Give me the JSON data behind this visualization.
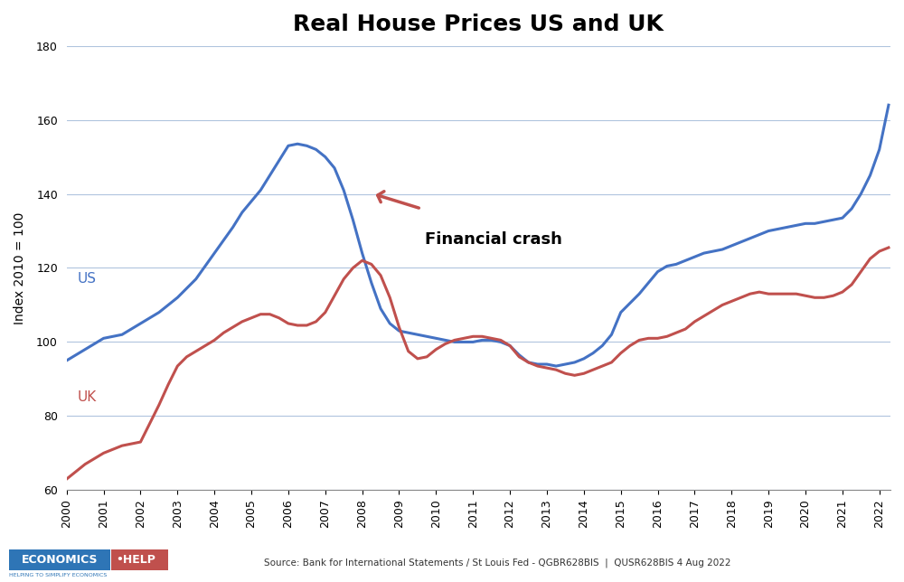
{
  "title": "Real House Prices US and UK",
  "ylabel": "Index 2010 = 100",
  "source_text": "Source: Bank for International Statements / St Louis Fed - QGBR628BIS  |  QUSR628BIS 4 Aug 2022",
  "ylim": [
    60,
    180
  ],
  "yticks": [
    60,
    80,
    100,
    120,
    140,
    160,
    180
  ],
  "background_color": "#ffffff",
  "us_color": "#4472C4",
  "uk_color": "#C0504D",
  "annotation_text": "Financial crash",
  "us_label": "US",
  "uk_label": "UK",
  "years": [
    2000.0,
    2000.25,
    2000.5,
    2000.75,
    2001.0,
    2001.25,
    2001.5,
    2001.75,
    2002.0,
    2002.25,
    2002.5,
    2002.75,
    2003.0,
    2003.25,
    2003.5,
    2003.75,
    2004.0,
    2004.25,
    2004.5,
    2004.75,
    2005.0,
    2005.25,
    2005.5,
    2005.75,
    2006.0,
    2006.25,
    2006.5,
    2006.75,
    2007.0,
    2007.25,
    2007.5,
    2007.75,
    2008.0,
    2008.25,
    2008.5,
    2008.75,
    2009.0,
    2009.25,
    2009.5,
    2009.75,
    2010.0,
    2010.25,
    2010.5,
    2010.75,
    2011.0,
    2011.25,
    2011.5,
    2011.75,
    2012.0,
    2012.25,
    2012.5,
    2012.75,
    2013.0,
    2013.25,
    2013.5,
    2013.75,
    2014.0,
    2014.25,
    2014.5,
    2014.75,
    2015.0,
    2015.25,
    2015.5,
    2015.75,
    2016.0,
    2016.25,
    2016.5,
    2016.75,
    2017.0,
    2017.25,
    2017.5,
    2017.75,
    2018.0,
    2018.25,
    2018.5,
    2018.75,
    2019.0,
    2019.25,
    2019.5,
    2019.75,
    2020.0,
    2020.25,
    2020.5,
    2020.75,
    2021.0,
    2021.25,
    2021.5,
    2021.75,
    2022.0,
    2022.25
  ],
  "us_values": [
    95.0,
    96.5,
    98.0,
    99.5,
    101.0,
    101.5,
    102.0,
    103.5,
    105.0,
    106.5,
    108.0,
    110.0,
    112.0,
    114.5,
    117.0,
    120.5,
    124.0,
    127.5,
    131.0,
    135.0,
    138.0,
    141.0,
    145.0,
    149.0,
    153.0,
    153.5,
    153.0,
    152.0,
    150.0,
    147.0,
    141.0,
    133.0,
    124.0,
    116.0,
    109.0,
    105.0,
    103.0,
    102.5,
    102.0,
    101.5,
    101.0,
    100.5,
    100.0,
    100.0,
    100.0,
    100.5,
    100.5,
    100.0,
    99.0,
    96.5,
    94.5,
    94.0,
    94.0,
    93.5,
    94.0,
    94.5,
    95.5,
    97.0,
    99.0,
    102.0,
    108.0,
    110.5,
    113.0,
    116.0,
    119.0,
    120.5,
    121.0,
    122.0,
    123.0,
    124.0,
    124.5,
    125.0,
    126.0,
    127.0,
    128.0,
    129.0,
    130.0,
    130.5,
    131.0,
    131.5,
    132.0,
    132.0,
    132.5,
    133.0,
    133.5,
    136.0,
    140.0,
    145.0,
    152.0,
    164.0
  ],
  "uk_values": [
    63.0,
    65.0,
    67.0,
    68.5,
    70.0,
    71.0,
    72.0,
    72.5,
    73.0,
    78.0,
    83.0,
    88.5,
    93.5,
    96.0,
    97.5,
    99.0,
    100.5,
    102.5,
    104.0,
    105.5,
    106.5,
    107.5,
    107.5,
    106.5,
    105.0,
    104.5,
    104.5,
    105.5,
    108.0,
    112.5,
    117.0,
    120.0,
    122.0,
    121.0,
    118.0,
    112.0,
    104.0,
    97.5,
    95.5,
    96.0,
    98.0,
    99.5,
    100.5,
    101.0,
    101.5,
    101.5,
    101.0,
    100.5,
    99.0,
    96.0,
    94.5,
    93.5,
    93.0,
    92.5,
    91.5,
    91.0,
    91.5,
    92.5,
    93.5,
    94.5,
    97.0,
    99.0,
    100.5,
    101.0,
    101.0,
    101.5,
    102.5,
    103.5,
    105.5,
    107.0,
    108.5,
    110.0,
    111.0,
    112.0,
    113.0,
    113.5,
    113.0,
    113.0,
    113.0,
    113.0,
    112.5,
    112.0,
    112.0,
    112.5,
    113.5,
    115.5,
    119.0,
    122.5,
    124.5,
    125.5
  ]
}
